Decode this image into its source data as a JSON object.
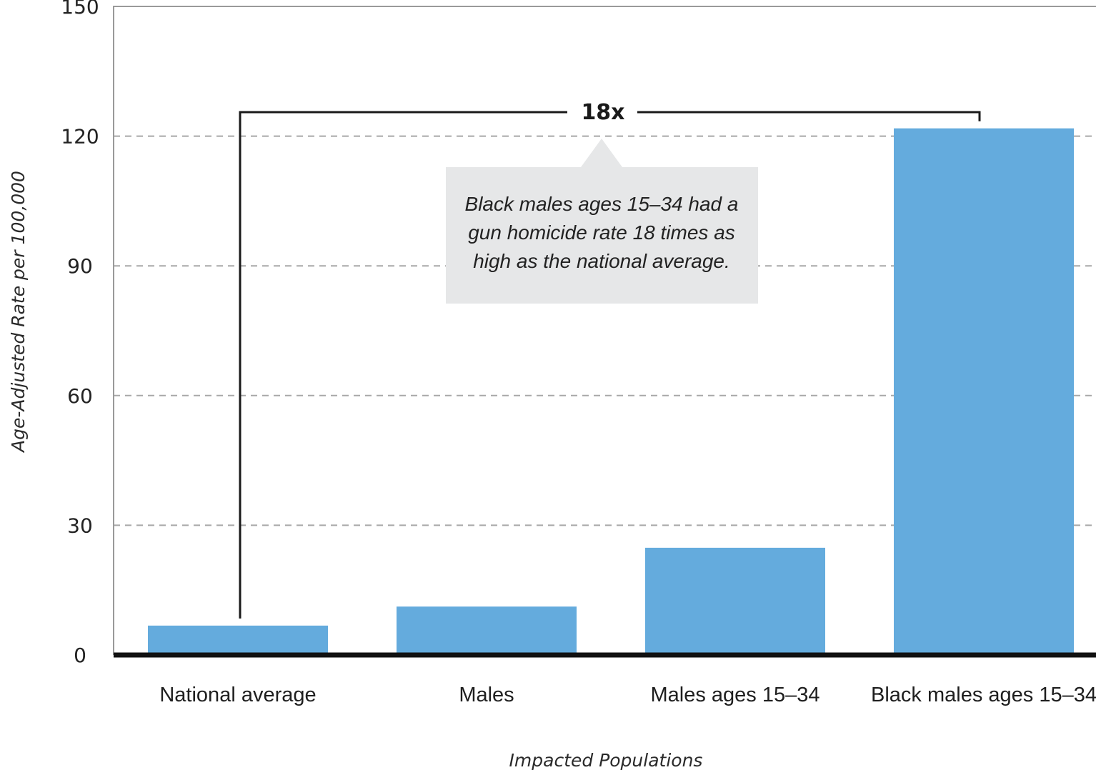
{
  "chart_data": {
    "type": "bar",
    "categories": [
      "National average",
      "Males",
      "Males ages 15–34",
      "Black males ages 15–34"
    ],
    "values": [
      6.8,
      11.2,
      24.8,
      121.8
    ],
    "xlabel": "Impacted Populations",
    "ylabel": "Age-Adjusted Rate per 100,000",
    "ylim": [
      0,
      150
    ],
    "yticks": [
      0,
      30,
      60,
      90,
      120,
      150
    ],
    "grid": true,
    "bar_color": "#64abdd",
    "annotation": {
      "label": "18x",
      "from_category": "National average",
      "to_category": "Black males ages 15–34",
      "callout_lines": [
        "Black males ages 15–34 had a",
        "gun homicide rate 18 times as",
        "high as the national average."
      ],
      "callout_fill": "#e6e7e8"
    }
  }
}
